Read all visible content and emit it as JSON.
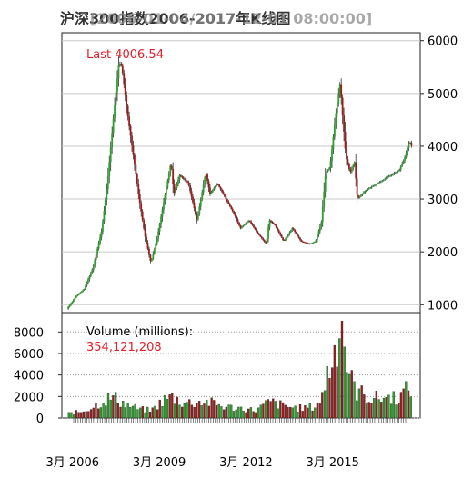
{
  "chart_data": {
    "type": "candlestick",
    "title": "沪深300指数2006-2017年K线图",
    "title_date": "[2006-01-04/2017-12-01 08:00:00]",
    "price_panel": {
      "last_label": "Last 4006.54",
      "ylim": [
        850,
        6150
      ],
      "yticks": [
        1000,
        2000,
        3000,
        4000,
        5000,
        6000
      ],
      "ytick_labels": [
        "1000",
        "2000",
        "3000",
        "4000",
        "5000",
        "6000"
      ],
      "grid": true,
      "up_color": "#2ca02c",
      "down_color": "#9b1c1c",
      "series": [
        {
          "t": 2006.0,
          "v": 920
        },
        {
          "t": 2006.3,
          "v": 1150
        },
        {
          "t": 2006.6,
          "v": 1300
        },
        {
          "t": 2006.9,
          "v": 1700
        },
        {
          "t": 2007.2,
          "v": 2400
        },
        {
          "t": 2007.4,
          "v": 3300
        },
        {
          "t": 2007.6,
          "v": 4500
        },
        {
          "t": 2007.8,
          "v": 5600
        },
        {
          "t": 2007.9,
          "v": 5500
        },
        {
          "t": 2008.1,
          "v": 4600
        },
        {
          "t": 2008.3,
          "v": 3800
        },
        {
          "t": 2008.5,
          "v": 3000
        },
        {
          "t": 2008.7,
          "v": 2300
        },
        {
          "t": 2008.9,
          "v": 1800
        },
        {
          "t": 2009.1,
          "v": 2200
        },
        {
          "t": 2009.3,
          "v": 2800
        },
        {
          "t": 2009.6,
          "v": 3700
        },
        {
          "t": 2009.7,
          "v": 3100
        },
        {
          "t": 2009.9,
          "v": 3450
        },
        {
          "t": 2010.2,
          "v": 3300
        },
        {
          "t": 2010.5,
          "v": 2600
        },
        {
          "t": 2010.8,
          "v": 3500
        },
        {
          "t": 2010.95,
          "v": 3100
        },
        {
          "t": 2011.2,
          "v": 3300
        },
        {
          "t": 2011.5,
          "v": 3000
        },
        {
          "t": 2011.8,
          "v": 2700
        },
        {
          "t": 2012.0,
          "v": 2450
        },
        {
          "t": 2012.3,
          "v": 2600
        },
        {
          "t": 2012.6,
          "v": 2350
        },
        {
          "t": 2012.9,
          "v": 2150
        },
        {
          "t": 2013.0,
          "v": 2600
        },
        {
          "t": 2013.2,
          "v": 2500
        },
        {
          "t": 2013.5,
          "v": 2200
        },
        {
          "t": 2013.8,
          "v": 2450
        },
        {
          "t": 2014.1,
          "v": 2200
        },
        {
          "t": 2014.4,
          "v": 2150
        },
        {
          "t": 2014.6,
          "v": 2200
        },
        {
          "t": 2014.8,
          "v": 2550
        },
        {
          "t": 2014.95,
          "v": 3500
        },
        {
          "t": 2015.1,
          "v": 3600
        },
        {
          "t": 2015.3,
          "v": 4600
        },
        {
          "t": 2015.45,
          "v": 5200
        },
        {
          "t": 2015.55,
          "v": 4500
        },
        {
          "t": 2015.65,
          "v": 3800
        },
        {
          "t": 2015.8,
          "v": 3500
        },
        {
          "t": 2015.95,
          "v": 3700
        },
        {
          "t": 2016.05,
          "v": 3000
        },
        {
          "t": 2016.3,
          "v": 3150
        },
        {
          "t": 2016.6,
          "v": 3250
        },
        {
          "t": 2016.9,
          "v": 3350
        },
        {
          "t": 2017.2,
          "v": 3450
        },
        {
          "t": 2017.5,
          "v": 3550
        },
        {
          "t": 2017.7,
          "v": 3800
        },
        {
          "t": 2017.85,
          "v": 4100
        },
        {
          "t": 2017.92,
          "v": 4006.54
        }
      ]
    },
    "volume_panel": {
      "label": "Volume (millions):",
      "value_label": "354,121,208",
      "ylim": [
        0,
        9800
      ],
      "yticks": [
        0,
        2000,
        4000,
        6000,
        8000
      ],
      "ytick_labels": [
        "0",
        "2000",
        "4000",
        "6000",
        "8000"
      ],
      "series": [
        {
          "t": 2006.0,
          "v": 400
        },
        {
          "t": 2006.5,
          "v": 600
        },
        {
          "t": 2007.0,
          "v": 1200
        },
        {
          "t": 2007.3,
          "v": 1700
        },
        {
          "t": 2007.6,
          "v": 1900
        },
        {
          "t": 2008.0,
          "v": 1300
        },
        {
          "t": 2008.5,
          "v": 800
        },
        {
          "t": 2008.9,
          "v": 700
        },
        {
          "t": 2009.3,
          "v": 1600
        },
        {
          "t": 2009.6,
          "v": 2000
        },
        {
          "t": 2010.0,
          "v": 1400
        },
        {
          "t": 2010.8,
          "v": 1500
        },
        {
          "t": 2011.5,
          "v": 1000
        },
        {
          "t": 2012.0,
          "v": 900
        },
        {
          "t": 2012.5,
          "v": 700
        },
        {
          "t": 2013.0,
          "v": 1500
        },
        {
          "t": 2013.5,
          "v": 1100
        },
        {
          "t": 2014.0,
          "v": 900
        },
        {
          "t": 2014.5,
          "v": 1000
        },
        {
          "t": 2014.8,
          "v": 1800
        },
        {
          "t": 2014.95,
          "v": 4000
        },
        {
          "t": 2015.2,
          "v": 5500
        },
        {
          "t": 2015.4,
          "v": 9000
        },
        {
          "t": 2015.5,
          "v": 9500
        },
        {
          "t": 2015.6,
          "v": 6000
        },
        {
          "t": 2015.8,
          "v": 3500
        },
        {
          "t": 2016.0,
          "v": 2500
        },
        {
          "t": 2016.5,
          "v": 1800
        },
        {
          "t": 2017.0,
          "v": 1900
        },
        {
          "t": 2017.5,
          "v": 2000
        },
        {
          "t": 2017.92,
          "v": 3000
        }
      ]
    },
    "xaxis": {
      "range": [
        2005.8,
        2018.2
      ],
      "tick_positions": [
        2006.17,
        2009.17,
        2012.17,
        2015.17
      ],
      "tick_labels": [
        "3月 2006",
        "3月 2009",
        "3月 2012",
        "3月 2015"
      ]
    }
  }
}
